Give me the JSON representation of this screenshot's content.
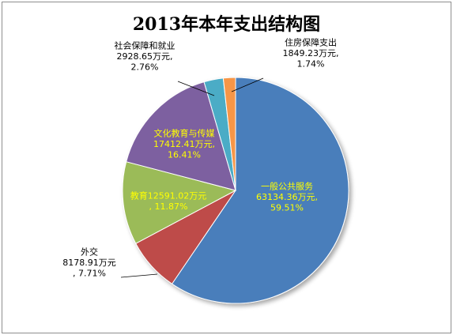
{
  "chart_data": {
    "type": "pie",
    "title": "2013年本年支出结构图",
    "slices": [
      {
        "name": "一般公共服务",
        "value": 63134.36,
        "percent": 59.51,
        "label_lines": [
          "一般公共服务",
          "63134.36万元,",
          "59.51%"
        ],
        "color": "#4a7ebb",
        "label_color": "#ffff00"
      },
      {
        "name": "外交",
        "value": 8178.91,
        "percent": 7.71,
        "label_lines": [
          "外交",
          "8178.91万元",
          ", 7.71%"
        ],
        "color": "#be4b48",
        "label_color": "#000000"
      },
      {
        "name": "教育",
        "value": 12591.02,
        "percent": 11.87,
        "label_lines": [
          "教育12591.02万元",
          ", 11.87%"
        ],
        "color": "#9bbb59",
        "label_color": "#ffff00"
      },
      {
        "name": "文化教育与传媒",
        "value": 17412.41,
        "percent": 16.41,
        "label_lines": [
          "文化教育与传媒",
          "17412.41万元,",
          "16.41%"
        ],
        "color": "#7d60a0",
        "label_color": "#ffff00"
      },
      {
        "name": "社会保障和就业",
        "value": 2928.65,
        "percent": 2.76,
        "label_lines": [
          "社会保障和就业",
          "2928.65万元,",
          "2.76%"
        ],
        "color": "#4bacc6",
        "label_color": "#000000"
      },
      {
        "name": "住房保障支出",
        "value": 1849.23,
        "percent": 1.74,
        "label_lines": [
          "住房保障支出",
          "1849.23万元,",
          "1.74%"
        ],
        "color": "#f79646",
        "label_color": "#000000"
      }
    ]
  }
}
